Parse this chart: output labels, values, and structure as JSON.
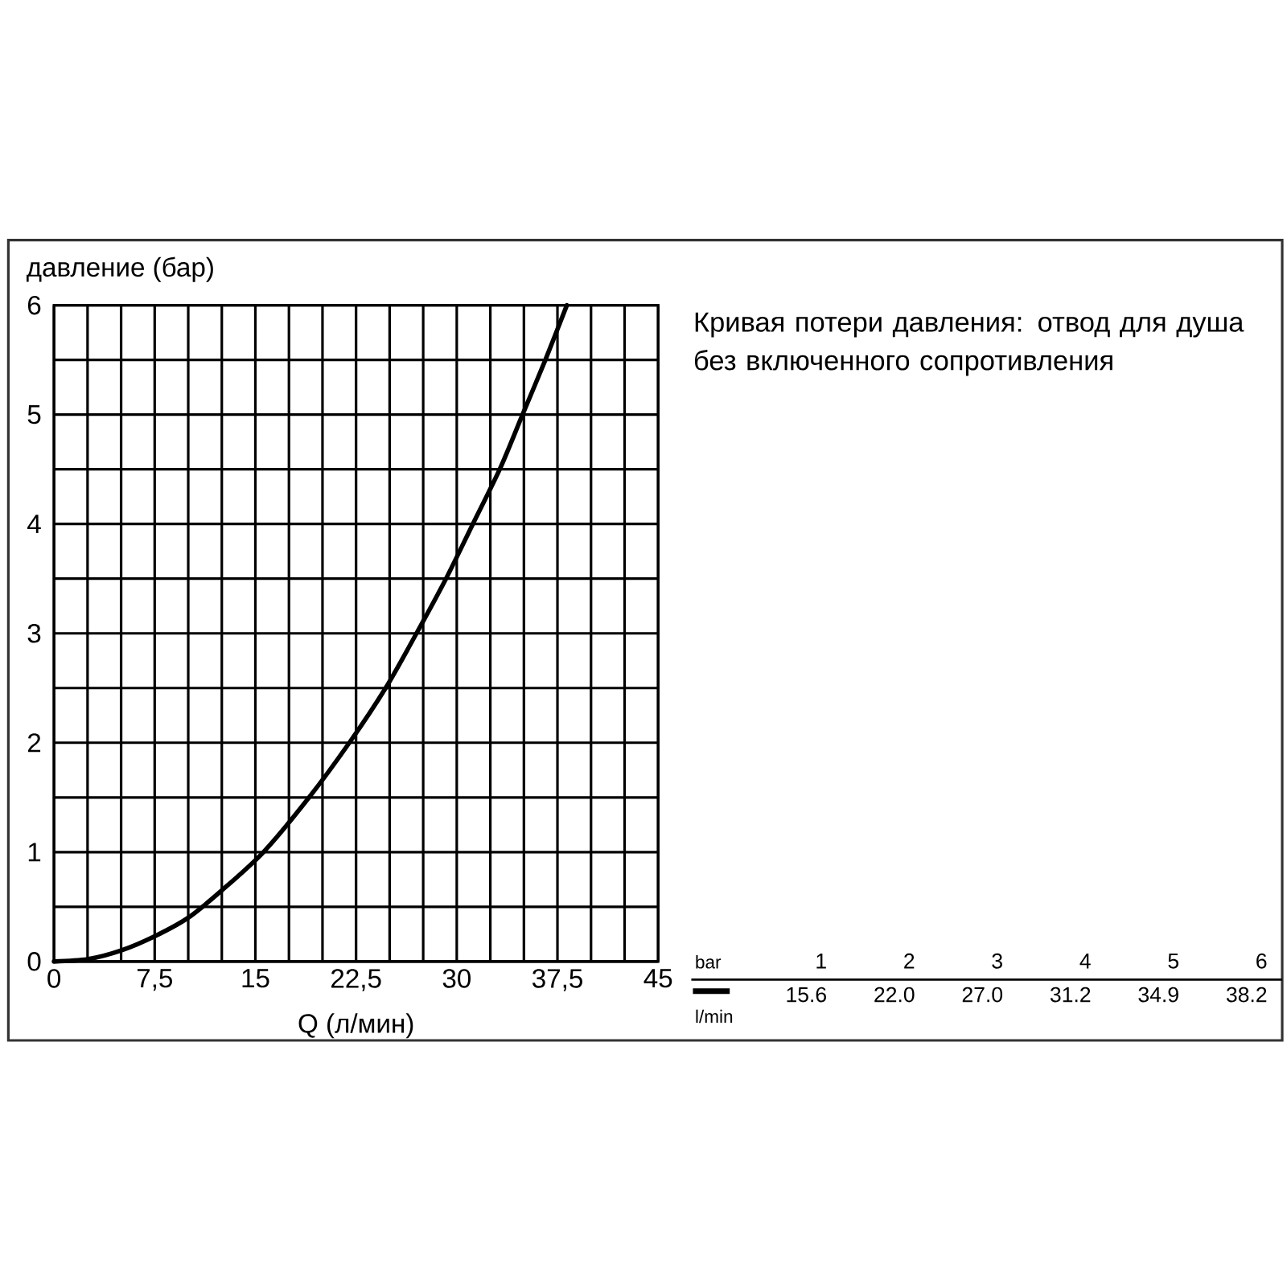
{
  "chart_data": {
    "type": "line",
    "title": "Кривая потери давления: отвод для душа без включенного сопротивления",
    "xlabel": "Q (л/мин)",
    "ylabel": "давление (бар)",
    "x": [
      0,
      2.5,
      5,
      7.5,
      10,
      12.5,
      15.6,
      19.0,
      22.0,
      24.7,
      27.0,
      29.2,
      31.2,
      33.2,
      34.9,
      36.6,
      38.2
    ],
    "values": [
      0,
      0.02,
      0.1,
      0.23,
      0.4,
      0.65,
      1,
      1.5,
      2,
      2.5,
      3,
      3.5,
      4,
      4.5,
      5,
      5.5,
      6
    ],
    "color": "#000000",
    "xlim": [
      0,
      45
    ],
    "ylim": [
      0,
      6
    ],
    "xticks": [
      0,
      {
        "value": 2.5,
        "label": null
      },
      {
        "value": 5,
        "label": null
      },
      {
        "value": 7.5,
        "label": "7,5"
      },
      {
        "value": 10,
        "label": null
      },
      {
        "value": 12.5,
        "label": null
      },
      15,
      {
        "value": 17.5,
        "label": null
      },
      {
        "value": 20,
        "label": null
      },
      {
        "value": 22.5,
        "label": "22,5"
      },
      {
        "value": 25,
        "label": null
      },
      {
        "value": 27.5,
        "label": null
      },
      30,
      {
        "value": 32.5,
        "label": null
      },
      {
        "value": 35,
        "label": null
      },
      {
        "value": 37.5,
        "label": "37,5"
      },
      {
        "value": 40,
        "label": null
      },
      {
        "value": 42.5,
        "label": null
      },
      45
    ],
    "yticks": [
      0,
      {
        "value": 0.5,
        "label": null
      },
      1,
      {
        "value": 1.5,
        "label": null
      },
      2,
      {
        "value": 2.5,
        "label": null
      },
      3,
      {
        "value": 3.5,
        "label": null
      },
      4,
      {
        "value": 4.5,
        "label": null
      },
      5,
      {
        "value": 5.5,
        "label": null
      },
      6
    ],
    "grid": true,
    "annotations": [
      "bar",
      "1",
      "2",
      "3",
      "4",
      "5",
      "6",
      "15.6",
      "22.0",
      "27.0",
      "31.2",
      "34.9",
      "38.2",
      "l/min"
    ]
  }
}
